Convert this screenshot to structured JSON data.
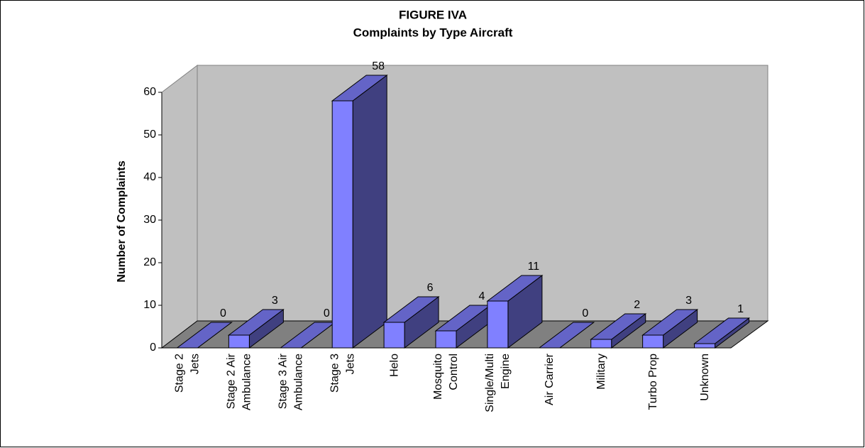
{
  "chart_data": {
    "type": "bar3d",
    "title": "FIGURE IVA",
    "subtitle": "Complaints by Type Aircraft",
    "y_label": "Number of Complaints",
    "categories": [
      [
        "Stage 2",
        "Jets"
      ],
      [
        "Stage 2 Air",
        "Ambulance"
      ],
      [
        "Stage 3 Air",
        "Ambulance"
      ],
      [
        "Stage 3",
        "Jets"
      ],
      [
        "Helo"
      ],
      [
        "Mosquito",
        "Control"
      ],
      [
        "Single/Multi",
        "Engine"
      ],
      [
        "Air Carrier"
      ],
      [
        "Military"
      ],
      [
        "Turbo Prop"
      ],
      [
        "Unknown"
      ]
    ],
    "values": [
      0,
      3,
      0,
      58,
      6,
      4,
      11,
      0,
      2,
      3,
      1
    ],
    "color": "#8080ff",
    "ylim": [
      0,
      60
    ],
    "yticks": [
      0,
      10,
      20,
      30,
      40,
      50,
      60
    ],
    "grid": false
  }
}
